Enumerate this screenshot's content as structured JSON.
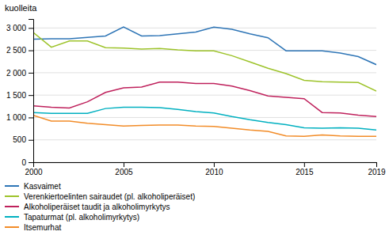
{
  "chart_data": {
    "type": "line",
    "ylabel": "kuolleita",
    "x": [
      2000,
      2001,
      2002,
      2003,
      2004,
      2005,
      2006,
      2007,
      2008,
      2009,
      2010,
      2011,
      2012,
      2013,
      2014,
      2015,
      2016,
      2017,
      2018,
      2019
    ],
    "series": [
      {
        "name": "Kasvaimet",
        "color": "#2e75b6",
        "values": [
          2750,
          2760,
          2760,
          2790,
          2820,
          3020,
          2820,
          2830,
          2870,
          2910,
          3020,
          2970,
          2870,
          2780,
          2490,
          2490,
          2490,
          2440,
          2360,
          2180
        ]
      },
      {
        "name": "Verenkiertoelinten sairaudet (pl. alkoholiperäiset)",
        "color": "#9dc32a",
        "values": [
          2900,
          2570,
          2710,
          2710,
          2560,
          2550,
          2530,
          2540,
          2510,
          2490,
          2490,
          2380,
          2240,
          2100,
          1980,
          1830,
          1800,
          1790,
          1780,
          1590
        ]
      },
      {
        "name": "Alkoholiperäiset taudit ja alkoholimyrkytys",
        "color": "#bf215c",
        "values": [
          1260,
          1230,
          1210,
          1350,
          1560,
          1660,
          1680,
          1790,
          1790,
          1760,
          1760,
          1700,
          1600,
          1480,
          1450,
          1420,
          1110,
          1100,
          1050,
          1020
        ]
      },
      {
        "name": "Tapaturmat (pl. alkoholimyrkytys)",
        "color": "#00b0c0",
        "values": [
          1110,
          1090,
          1090,
          1090,
          1200,
          1230,
          1230,
          1220,
          1180,
          1130,
          1100,
          1020,
          950,
          890,
          840,
          770,
          760,
          770,
          760,
          720
        ]
      },
      {
        "name": "Itsemurhat",
        "color": "#f28c28",
        "values": [
          1050,
          920,
          920,
          870,
          840,
          810,
          820,
          830,
          830,
          810,
          800,
          760,
          720,
          690,
          590,
          580,
          610,
          590,
          580,
          580
        ]
      }
    ],
    "ylim": [
      0,
      3200
    ],
    "yticks": [
      0,
      500,
      {
        "value": 1000,
        "label": "1 000"
      },
      {
        "value": 1500,
        "label": "1 500"
      },
      {
        "value": 2000,
        "label": "2 000"
      },
      {
        "value": 2500,
        "label": "2 500"
      },
      {
        "value": 3000,
        "label": "3 000"
      }
    ],
    "xlim": [
      2000,
      2019
    ],
    "xticks": [
      2000,
      2005,
      2010,
      2015,
      2019
    ],
    "grid": true,
    "legend": "bottom"
  }
}
